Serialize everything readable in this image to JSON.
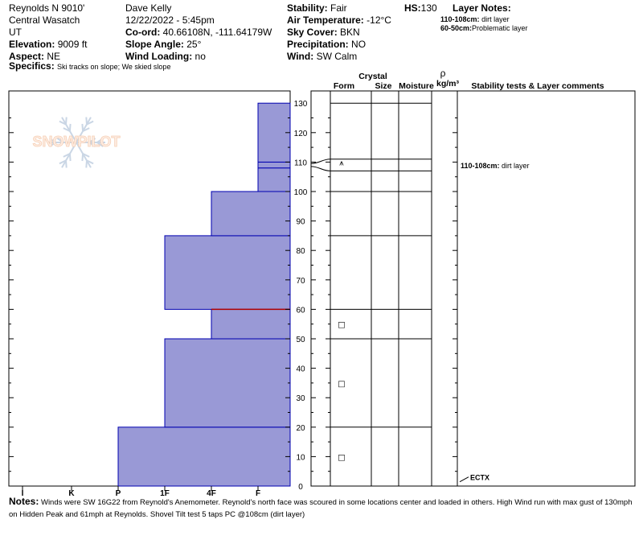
{
  "header": {
    "location": "Reynolds N 9010'",
    "range": "Central Wasatch",
    "state": "UT",
    "elevation_label": "Elevation:",
    "elevation": "9009 ft",
    "aspect_label": "Aspect:",
    "aspect": "NE",
    "specifics_label": "Specifics:",
    "specifics": "Ski tracks on slope; We skied slope",
    "observer": "Dave Kelly",
    "datetime": "12/22/2022 - 5:45pm",
    "coord_label": "Co-ord:",
    "coord": "40.66108N, -111.64179W",
    "slope_label": "Slope Angle:",
    "slope": "25°",
    "wind_loading_label": "Wind Loading:",
    "wind_loading": "no",
    "stability_label": "Stability:",
    "stability": "Fair",
    "air_temp_label": "Air Temperature:",
    "air_temp": "-12°C",
    "sky_label": "Sky Cover:",
    "sky": "BKN",
    "precip_label": "Precipitation:",
    "precip": "NO",
    "wind_label": "Wind:",
    "wind": "SW Calm",
    "hs_label": "HS:",
    "hs": "130",
    "layer_notes_label": "Layer Notes:",
    "layer_notes": [
      {
        "range": "110-108cm:",
        "text": "dirt layer"
      },
      {
        "range": "60-50cm:",
        "text": "Problematic layer"
      }
    ]
  },
  "logo_text": "SNOWPILOT",
  "column_headers": {
    "crystal": "Crystal",
    "form": "Form",
    "size": "Size",
    "moisture": "Moisture",
    "rho": "ρ",
    "density_unit": "kg/m³",
    "comments": "Stability tests & Layer comments"
  },
  "notes_label": "Notes:",
  "notes": "Winds were SW 16G22 from Reynold's Anemometer. Reynold's north face was scoured in some locations center and loaded in others. High Wind run with max gust of 130mph  on Hidden Peak and 61mph at Reynolds.  Shovel Tilt test 5 taps PC @108cm (dirt layer)",
  "colors": {
    "layer_fill": "#9999d6",
    "layer_edge": "#0000b0",
    "problem_line": "#b00000"
  },
  "chart_data": {
    "type": "bar",
    "orientation": "horizontal-step",
    "title": "",
    "xlabel": "",
    "ylabel": "",
    "y_ticks": [
      0,
      10,
      20,
      30,
      40,
      50,
      60,
      70,
      80,
      90,
      100,
      110,
      120,
      130
    ],
    "ylim": [
      0,
      130
    ],
    "hardness_scale": [
      "I",
      "K",
      "P",
      "1F",
      "4F",
      "F"
    ],
    "layers": [
      {
        "bottom": 0,
        "top": 20,
        "hardness": "P"
      },
      {
        "bottom": 20,
        "top": 50,
        "hardness": "1F"
      },
      {
        "bottom": 50,
        "top": 60,
        "hardness": "4F"
      },
      {
        "bottom": 60,
        "top": 85,
        "hardness": "1F"
      },
      {
        "bottom": 85,
        "top": 100,
        "hardness": "4F"
      },
      {
        "bottom": 100,
        "top": 108,
        "hardness": "F"
      },
      {
        "bottom": 108,
        "top": 110,
        "hardness": "F"
      },
      {
        "bottom": 110,
        "top": 130,
        "hardness": "F"
      }
    ],
    "problem_layer": 60,
    "layer_boundaries": [
      20,
      50,
      60,
      85,
      100,
      107,
      111,
      130
    ],
    "crystal_symbols": [
      {
        "height": 10,
        "symbol": "□"
      },
      {
        "height": 35,
        "symbol": "□"
      },
      {
        "height": 55,
        "symbol": "□"
      },
      {
        "height": 110,
        "symbol": "⩚"
      }
    ],
    "comments": [
      {
        "height": 109,
        "label": "110-108cm:",
        "text": "dirt layer"
      }
    ],
    "tests": [
      {
        "height": 2,
        "label": "ECTX"
      }
    ]
  }
}
